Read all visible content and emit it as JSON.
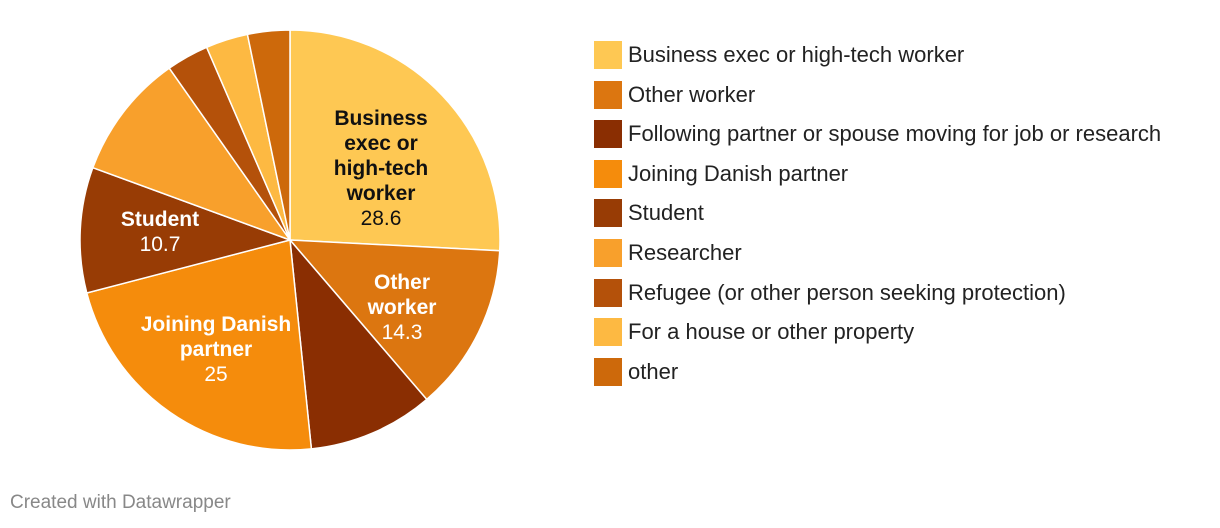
{
  "chart_data": {
    "type": "pie",
    "categories": [
      "Business exec or high-tech worker",
      "Other worker",
      "Following partner or spouse moving for job or research",
      "Joining Danish partner",
      "Student",
      "Researcher",
      "Refugee (or other person seeking protection)",
      "For a house or other property",
      "other"
    ],
    "values": [
      28.6,
      14.3,
      10.7,
      25,
      10.7,
      10.7,
      3.6,
      3.6,
      3.6
    ],
    "colors": [
      "#fec853",
      "#dc7610",
      "#8a2e02",
      "#f58c0c",
      "#983c05",
      "#f8a02c",
      "#b4510a",
      "#fdb942",
      "#cd690b"
    ],
    "footer": "Created with Datawrapper"
  }
}
